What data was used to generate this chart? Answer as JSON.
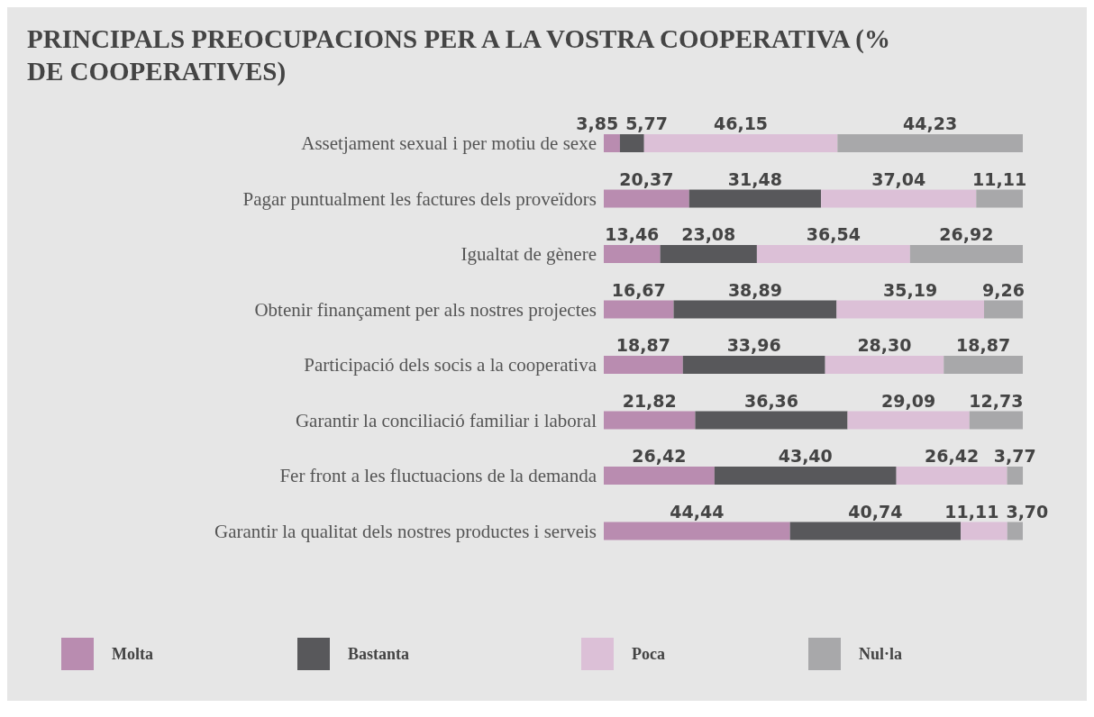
{
  "chart_data": {
    "type": "bar",
    "orientation": "horizontal",
    "stacked": true,
    "title": "PRINCIPALS PREOCUPACIONS PER A LA VOSTRA COOPERATIVA (% DE COOPERATIVES)",
    "categories": [
      "Assetjament sexual i per motiu de sexe",
      "Pagar puntualment les factures dels proveïdors",
      "Igualtat de gènere",
      "Obtenir finançament per als nostres projectes",
      "Participació dels socis a la cooperativa",
      "Garantir la conciliació familiar i laboral",
      "Fer front a les fluctuacions de la demanda",
      "Garantir la qualitat dels nostres productes i serveis"
    ],
    "xlim": [
      0,
      100
    ],
    "legend": "bottom",
    "series": [
      {
        "name": "Molta",
        "color": "#b98cb0",
        "values": [
          3.85,
          20.37,
          13.46,
          16.67,
          18.87,
          21.82,
          26.42,
          44.44
        ],
        "value_labels": [
          "3,85",
          "20,37",
          "13,46",
          "16,67",
          "18,87",
          "21,82",
          "26,42",
          "44,44"
        ]
      },
      {
        "name": "Bastanta",
        "color": "#58585b",
        "values": [
          5.77,
          31.48,
          23.08,
          38.89,
          33.96,
          36.36,
          43.4,
          40.74
        ],
        "value_labels": [
          "5,77",
          "31,48",
          "23,08",
          "38,89",
          "33,96",
          "36,36",
          "43,40",
          "40,74"
        ]
      },
      {
        "name": "Poca",
        "color": "#dcc0d7",
        "values": [
          46.15,
          37.04,
          36.54,
          35.19,
          28.3,
          29.09,
          26.42,
          11.11
        ],
        "value_labels": [
          "46,15",
          "37,04",
          "36,54",
          "35,19",
          "28,30",
          "29,09",
          "26,42",
          "11,11"
        ]
      },
      {
        "name": "Nul·la",
        "color": "#a8a8aa",
        "values": [
          44.23,
          11.11,
          26.92,
          9.26,
          18.87,
          12.73,
          3.77,
          3.7
        ],
        "value_labels": [
          "44,23",
          "11,11",
          "26,92",
          "9,26",
          "18,87",
          "12,73",
          "3,77",
          "3,70"
        ]
      }
    ]
  }
}
